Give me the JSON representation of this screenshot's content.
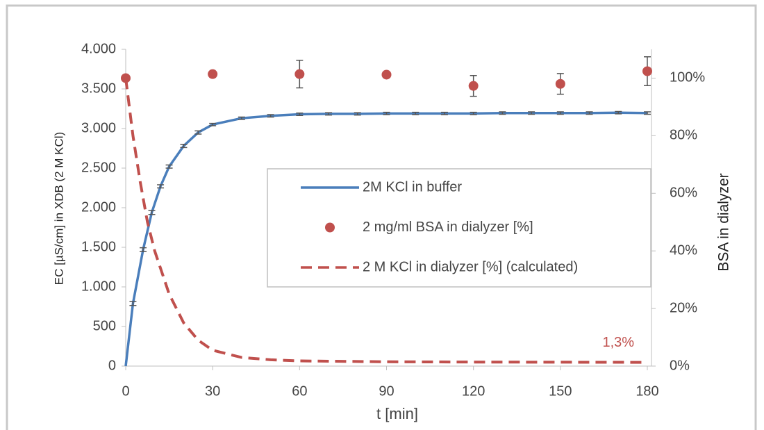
{
  "chart_data": {
    "type": "line",
    "xlabel": "t [min]",
    "ylabel": "EC [µS/cm] in XDB (2 M KCl)",
    "y2label": "BSA in dialyzer",
    "xlim": [
      0,
      180
    ],
    "xticks": [
      0,
      30,
      60,
      90,
      120,
      150,
      180
    ],
    "ylim": [
      0,
      4000
    ],
    "yticks": [
      0,
      500,
      {
        "value": 1000,
        "label": "1.000"
      },
      {
        "value": 1500,
        "label": "1.500"
      },
      {
        "value": 2000,
        "label": "2.000"
      },
      {
        "value": 2500,
        "label": "2.500"
      },
      {
        "value": 3000,
        "label": "3.000"
      },
      {
        "value": 3500,
        "label": "3.500"
      },
      {
        "value": 4000,
        "label": "4.000"
      }
    ],
    "y2lim": [
      0,
      110
    ],
    "y2ticks": [
      {
        "value": 0,
        "label": "0%"
      },
      {
        "value": 20,
        "label": "20%"
      },
      {
        "value": 40,
        "label": "40%"
      },
      {
        "value": 60,
        "label": "60%"
      },
      {
        "value": 80,
        "label": "80%"
      },
      {
        "value": 100,
        "label": "100%"
      }
    ],
    "legend": "right",
    "series": [
      {
        "name": "2M KCl in buffer",
        "kind": "line",
        "color": "#4a7ebb",
        "axis": "y",
        "x": [
          0,
          2.5,
          6,
          9,
          12,
          15,
          20,
          25,
          30,
          40,
          50,
          60,
          70,
          80,
          90,
          100,
          110,
          120,
          130,
          140,
          150,
          160,
          170,
          180
        ],
        "values": [
          0,
          790,
          1470,
          1940,
          2270,
          2520,
          2780,
          2950,
          3050,
          3130,
          3160,
          3180,
          3185,
          3185,
          3190,
          3190,
          3190,
          3190,
          3195,
          3195,
          3195,
          3195,
          3200,
          3195
        ],
        "errors": [
          0,
          25,
          25,
          25,
          20,
          20,
          20,
          20,
          15,
          15,
          15,
          15,
          15,
          15,
          15,
          15,
          15,
          15,
          15,
          15,
          15,
          15,
          15,
          15
        ]
      },
      {
        "name": "2 mg/ml BSA in dialyzer [%]",
        "kind": "scatter",
        "color": "#c0504d",
        "axis": "y2",
        "x": [
          0,
          30,
          60,
          90,
          120,
          150,
          180
        ],
        "values": [
          100,
          101.4,
          101.4,
          101.2,
          97.3,
          98,
          102.4
        ],
        "errors": [
          0,
          0,
          4.8,
          0,
          3.6,
          3.6,
          5
        ]
      },
      {
        "name": "2 M KCl in dialyzer [%] (calculated)",
        "kind": "dashed",
        "color": "#c0504d",
        "axis": "y2",
        "x": [
          0,
          2.5,
          5,
          7.5,
          10,
          15,
          20,
          25,
          30,
          40,
          50,
          60,
          90,
          120,
          150,
          180
        ],
        "values": [
          100,
          80,
          64,
          50,
          40,
          25,
          15,
          9,
          5.5,
          3,
          2.2,
          1.8,
          1.5,
          1.4,
          1.35,
          1.3
        ]
      }
    ],
    "annotations": [
      {
        "text": "1,3%",
        "x": 170,
        "y": 8
      }
    ]
  }
}
